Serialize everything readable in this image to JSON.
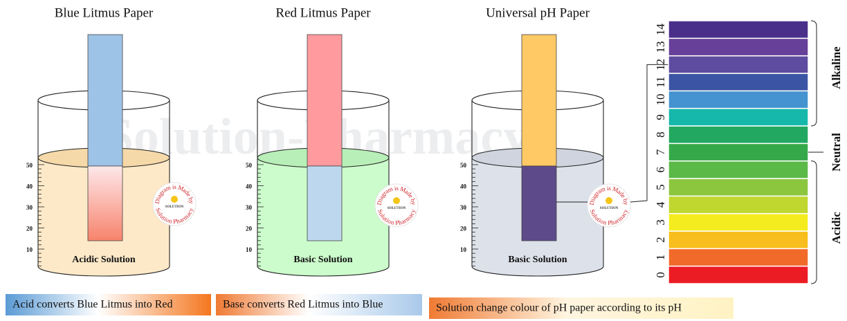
{
  "watermark": "Solution-Pharmacy",
  "stamp": {
    "top": "Diagram is Made by",
    "bottom": "Solution Pharmacy",
    "center": "SOLUTION"
  },
  "beakers": [
    {
      "title": "Blue Litmus Paper",
      "solution": "Acidic Solution",
      "scale": [
        50,
        40,
        30,
        20,
        10
      ]
    },
    {
      "title": "Red Litmus Paper",
      "solution": "Basic Solution",
      "scale": [
        50,
        40,
        30,
        20,
        10
      ]
    },
    {
      "title": "Universal pH Paper",
      "solution": "Basic Solution",
      "scale": [
        50,
        40,
        30,
        20,
        10
      ]
    }
  ],
  "ph_scale": {
    "levels": [
      0,
      1,
      2,
      3,
      4,
      5,
      6,
      7,
      8,
      9,
      10,
      11,
      12,
      13,
      14
    ],
    "alkaline": "Alkaline",
    "neutral": "Neutral",
    "acidic": "Acidic"
  },
  "captions": [
    "Acid converts Blue Litmus into Red",
    "Base converts Red Litmus into Blue",
    "Solution change colour of pH paper according to its pH"
  ]
}
